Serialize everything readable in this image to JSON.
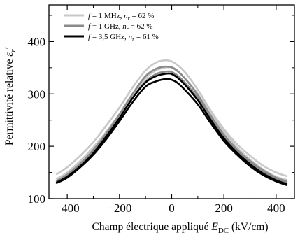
{
  "chart_data": {
    "type": "line",
    "title": "",
    "xlabel": "Champ électrique appliqué E_DC (kV/cm)",
    "xlabel_parts": {
      "prefix": "Champ électrique appliqué ",
      "var": "E",
      "sub": "DC",
      "suffix": " (kV/cm)"
    },
    "ylabel": "Permittivité relative εr′",
    "ylabel_parts": {
      "prefix": "Permittivité relative ",
      "var": "ε",
      "sub": "r",
      "suffix": "′"
    },
    "xlim": [
      -470,
      470
    ],
    "ylim": [
      100,
      470
    ],
    "xticks": [
      -400,
      -200,
      0,
      200,
      400
    ],
    "yticks": [
      100,
      200,
      300,
      400
    ],
    "xtick_labels": [
      "−400",
      "−200",
      "0",
      "200",
      "400"
    ],
    "ytick_labels": [
      "100",
      "200",
      "300",
      "400"
    ],
    "grid": false,
    "legend_position": "top-left",
    "series": [
      {
        "name": "f = 1 MHz, nr = 62 %",
        "legend": {
          "f": "f",
          "fval": " = 1 MHz, ",
          "n": "n",
          "nsub": "r",
          "nval": " = 62 %"
        },
        "color": "#c8c8c8",
        "curves": [
          {
            "x": [
              -440,
              -400,
              -350,
              -300,
              -250,
              -200,
              -150,
              -100,
              -60,
              -30,
              -15,
              0,
              20,
              50,
              100,
              150,
              200,
              250,
              300,
              350,
              400,
              440
            ],
            "y": [
              147,
              160,
              182,
              208,
              240,
              274,
              312,
              345,
              360,
              364,
              364,
              362,
              356,
              342,
              308,
              268,
              233,
              204,
              182,
              163,
              150,
              143
            ]
          },
          {
            "x": [
              -440,
              -400,
              -350,
              -300,
              -250,
              -200,
              -150,
              -100,
              -60,
              -30,
              -10,
              0,
              20,
              50,
              100,
              150,
              200,
              250,
              300,
              350,
              400,
              440
            ],
            "y": [
              138,
              150,
              172,
              198,
              228,
              262,
              298,
              330,
              345,
              350,
              351,
              350,
              344,
              330,
              300,
              262,
              228,
              198,
              175,
              156,
              142,
              136
            ]
          }
        ]
      },
      {
        "name": "f = 1 GHz, nr = 62 %",
        "legend": {
          "f": "f",
          "fval": " = 1 GHz, ",
          "n": "n",
          "nsub": "r",
          "nval": " = 62 %"
        },
        "color": "#8a8a8a",
        "curves": [
          {
            "x": [
              -440,
              -400,
              -350,
              -300,
              -250,
              -200,
              -150,
              -100,
              -60,
              -30,
              -15,
              0,
              20,
              50,
              100,
              150,
              200,
              250,
              300,
              350,
              400,
              440
            ],
            "y": [
              134,
              146,
              167,
              193,
              225,
              261,
              300,
              334,
              348,
              352,
              352,
              351,
              345,
              330,
              298,
              258,
              222,
              194,
              172,
              154,
              140,
              133
            ]
          },
          {
            "x": [
              -440,
              -400,
              -350,
              -300,
              -250,
              -200,
              -150,
              -100,
              -60,
              -30,
              -10,
              0,
              20,
              50,
              100,
              150,
              200,
              250,
              300,
              350,
              400,
              440
            ],
            "y": [
              132,
              143,
              164,
              190,
              220,
              254,
              292,
              324,
              338,
              342,
              343,
              342,
              336,
              322,
              292,
              254,
              218,
              190,
              168,
              150,
              137,
              130
            ]
          }
        ]
      },
      {
        "name": "f = 3,5 GHz, nr = 61 %",
        "legend": {
          "f": "f",
          "fval": " = 3,5 GHz, ",
          "n": "n",
          "nsub": "r",
          "nval": " = 61 %"
        },
        "color": "#000000",
        "curves": [
          {
            "x": [
              -440,
              -400,
              -350,
              -300,
              -250,
              -200,
              -150,
              -100,
              -60,
              -30,
              -10,
              0,
              20,
              50,
              100,
              150,
              200,
              250,
              300,
              350,
              400,
              440
            ],
            "y": [
              131,
              142,
              162,
              187,
              219,
              254,
              292,
              322,
              334,
              338,
              339,
              338,
              332,
              318,
              288,
              250,
              215,
              188,
              166,
              148,
              135,
              128
            ]
          },
          {
            "x": [
              -440,
              -400,
              -350,
              -300,
              -250,
              -200,
              -150,
              -100,
              -60,
              -30,
              -10,
              0,
              20,
              50,
              100,
              150,
              200,
              250,
              300,
              350,
              400,
              440
            ],
            "y": [
              130,
              140,
              160,
              184,
              214,
              248,
              284,
              314,
              324,
              328,
              328,
              327,
              322,
              308,
              280,
              244,
              210,
              184,
              162,
              145,
              133,
              126
            ]
          }
        ]
      }
    ]
  }
}
